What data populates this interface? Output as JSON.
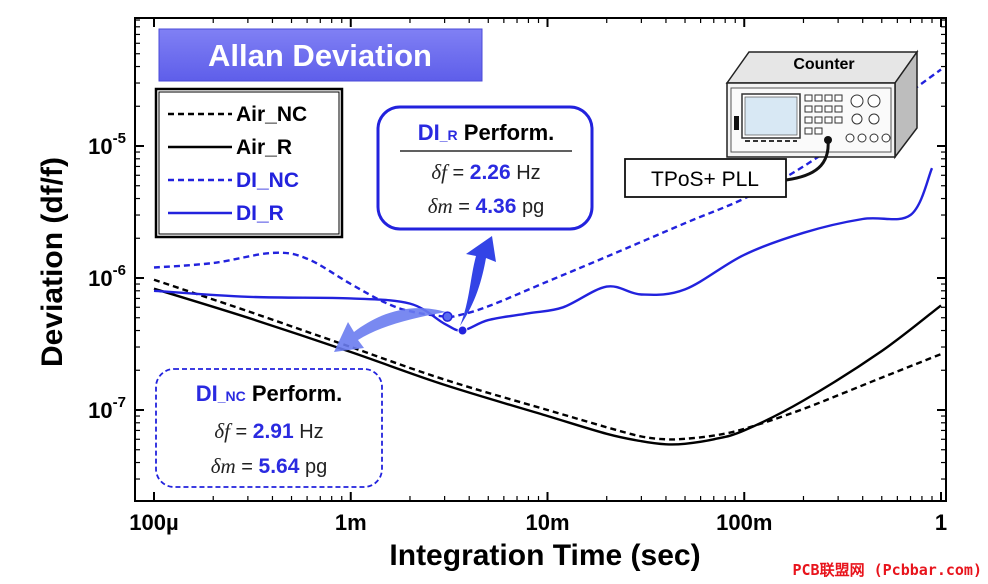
{
  "chart_data": {
    "type": "line",
    "title": "Allan Deviation",
    "xlabel": "Integration Time (sec)",
    "ylabel": "Deviation (df/f)",
    "xscale": "log",
    "yscale": "log",
    "xlim": [
      0.0001,
      1
    ],
    "ylim": [
      1.5e-08,
      9e-05
    ],
    "xticks": [
      {
        "value": 0.0001,
        "label": "100µ"
      },
      {
        "value": 0.001,
        "label": "1m"
      },
      {
        "value": 0.01,
        "label": "10m"
      },
      {
        "value": 0.1,
        "label": "100m"
      },
      {
        "value": 1,
        "label": "1"
      }
    ],
    "yticks": [
      {
        "value": 1e-07,
        "base": "10",
        "exp": "-7"
      },
      {
        "value": 1e-06,
        "base": "10",
        "exp": "-6"
      },
      {
        "value": 1e-05,
        "base": "10",
        "exp": "-5"
      }
    ],
    "legend": {
      "position": "top-left",
      "entries": [
        "Air_NC",
        "Air_R",
        "DI_NC",
        "DI_R"
      ]
    },
    "series": [
      {
        "name": "Air_NC",
        "color": "#000000",
        "dash": "dashed",
        "x": [
          0.0001,
          0.0003,
          0.001,
          0.003,
          0.01,
          0.02,
          0.03,
          0.04,
          0.05,
          0.07,
          0.1,
          0.2,
          0.5,
          1
        ],
        "y": [
          9.7e-07,
          5.6e-07,
          3e-07,
          1.7e-07,
          1e-07,
          7.4e-08,
          6.3e-08,
          6e-08,
          6.05e-08,
          6.4e-08,
          7.2e-08,
          1.02e-07,
          1.76e-07,
          2.65e-07
        ]
      },
      {
        "name": "Air_R",
        "color": "#000000",
        "dash": "solid",
        "x": [
          0.0001,
          0.0003,
          0.001,
          0.003,
          0.01,
          0.02,
          0.03,
          0.04,
          0.05,
          0.07,
          0.1,
          0.2,
          0.5,
          1
        ],
        "y": [
          8.3e-07,
          5e-07,
          2.75e-07,
          1.55e-07,
          9e-08,
          6.6e-08,
          5.8e-08,
          5.5e-08,
          5.55e-08,
          6e-08,
          7e-08,
          1.18e-07,
          2.8e-07,
          6.2e-07
        ]
      },
      {
        "name": "DI_NC",
        "color": "#2222dd",
        "dash": "dashed",
        "x": [
          0.0001,
          0.0002,
          0.0004,
          0.0006,
          0.001,
          0.0015,
          0.002,
          0.003,
          0.0035,
          0.005,
          0.01,
          0.02,
          0.05,
          0.1,
          0.2,
          0.5,
          1
        ],
        "y": [
          1.2e-06,
          1.3e-06,
          1.55e-06,
          1.4e-06,
          9e-07,
          6.5e-07,
          5.6e-07,
          5.1e-07,
          5.2e-07,
          6.1e-07,
          9.4e-07,
          1.45e-06,
          2.6e-06,
          4e-06,
          7e-06,
          1.8e-05,
          3.8e-05
        ]
      },
      {
        "name": "DI_R",
        "color": "#2222dd",
        "dash": "solid",
        "x": [
          0.0001,
          0.0003,
          0.001,
          0.002,
          0.003,
          0.0037,
          0.005,
          0.008,
          0.012,
          0.02,
          0.03,
          0.05,
          0.1,
          0.2,
          0.4,
          0.7,
          0.9
        ],
        "y": [
          8e-07,
          7.2e-07,
          7e-07,
          6.4e-07,
          4.5e-07,
          4e-07,
          4.8e-07,
          5.4e-07,
          6e-07,
          8.6e-07,
          7.5e-07,
          8.2e-07,
          1.5e-06,
          2.2e-06,
          2.8e-06,
          3e-06,
          6.8e-06
        ]
      }
    ],
    "markers": [
      {
        "series": "DI_NC",
        "x": 0.0031,
        "y": 5.1e-07
      },
      {
        "series": "DI_R",
        "x": 0.0037,
        "y": 4e-07
      }
    ],
    "annotations": {
      "di_r": {
        "label_main": "DI",
        "label_sub": "_R",
        "label_rest": " Perform.",
        "df_symbol": "δf",
        "df_value": "2.26",
        "df_unit": " Hz",
        "dm_symbol": "δm",
        "dm_value": "4.36",
        "dm_unit": " pg",
        "equals": " = "
      },
      "di_nc": {
        "label_main": "DI",
        "label_sub": "_NC",
        "label_rest": " Perform.",
        "df_symbol": "δf",
        "df_value": "2.91",
        "df_unit": " Hz",
        "dm_symbol": "δm",
        "dm_value": "5.64",
        "dm_unit": " pg",
        "equals": " = "
      }
    },
    "inset": {
      "device_label": "Counter",
      "module_label": "TPoS+ PLL",
      "icon": "frequency-counter-icon"
    },
    "watermark": "PCB联盟网 (Pcbbar.com)",
    "colors": {
      "blue": "#2222dd",
      "title_bg": "#6c6cf0",
      "arrow": "#4a5ae8"
    }
  }
}
